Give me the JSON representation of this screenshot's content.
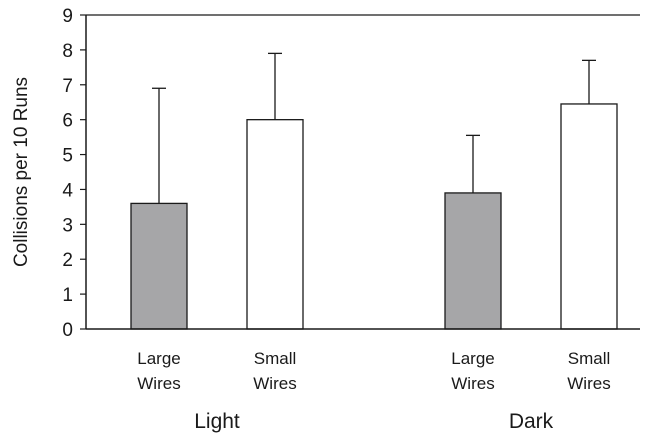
{
  "chart_data": {
    "type": "bar",
    "title": "",
    "xlabel": "",
    "ylabel": "Collisions per 10 Runs",
    "ylim": [
      0,
      9
    ],
    "yticks": [
      0,
      1,
      2,
      3,
      4,
      5,
      6,
      7,
      8,
      9
    ],
    "grid": false,
    "legend": "none",
    "groups": [
      {
        "name": "Light",
        "bars": [
          {
            "label": [
              "Large",
              "Wires"
            ],
            "value": 3.6,
            "error_upper": 6.9,
            "color": "#a6a6a8"
          },
          {
            "label": [
              "Small",
              "Wires"
            ],
            "value": 6.0,
            "error_upper": 7.9,
            "color": "#ffffff"
          }
        ]
      },
      {
        "name": "Dark",
        "bars": [
          {
            "label": [
              "Large",
              "Wires"
            ],
            "value": 3.9,
            "error_upper": 5.55,
            "color": "#a6a6a8"
          },
          {
            "label": [
              "Small",
              "Wires"
            ],
            "value": 6.45,
            "error_upper": 7.7,
            "color": "#ffffff"
          }
        ]
      }
    ]
  }
}
